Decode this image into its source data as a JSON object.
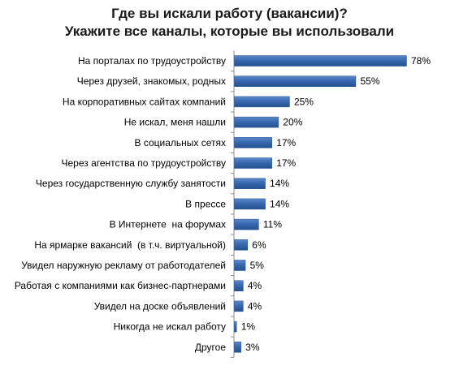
{
  "chart_data": {
    "type": "bar",
    "orientation": "horizontal",
    "title": "Где вы искали работу (вакансии)?",
    "subtitle": "Укажите все каналы, которые вы использовали",
    "categories": [
      "На порталах по трудоустройству",
      "Через друзей, знакомых, родных",
      "На корпоративных сайтах компаний",
      "Не искал, меня нашли",
      "В социальных сетях",
      "Через агентства по трудоустройству",
      "Через государственную службу занятости",
      "В прессе",
      "В Интернете  на форумах",
      "На ярмарке вакансий  (в т.ч. виртуальной)",
      "Увидел наружную рекламу от работодателей",
      "Работая с компаниями как бизнес-партнерами",
      "Увидел на доске объявлений",
      "Никогда не искал работу",
      "Другое"
    ],
    "values": [
      78,
      55,
      25,
      20,
      17,
      17,
      14,
      14,
      11,
      6,
      5,
      4,
      4,
      1,
      3
    ],
    "value_labels": [
      "78%",
      "55%",
      "25%",
      "20%",
      "17%",
      "17%",
      "14%",
      "14%",
      "11%",
      "6%",
      "5%",
      "4%",
      "4%",
      "1%",
      "3%"
    ],
    "unit": "%",
    "xlim": [
      0,
      78
    ],
    "grid": false,
    "legend": "none",
    "bar_color": "#3566ad"
  }
}
